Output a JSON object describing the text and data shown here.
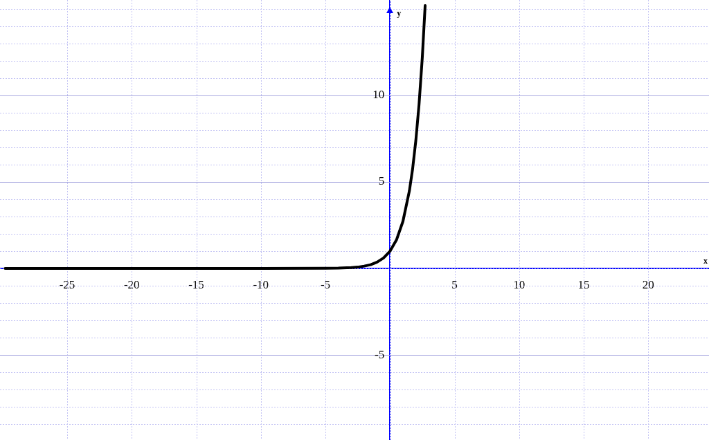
{
  "chart_data": {
    "type": "line",
    "xlabel": "x",
    "ylabel": "y",
    "x": [
      -29.8,
      -10,
      -5,
      -4,
      -3,
      -2.5,
      -2,
      -1.5,
      -1,
      -0.5,
      0,
      0.5,
      1,
      1.5,
      1.75,
      2,
      2.25,
      2.5,
      2.72
    ],
    "series": [
      {
        "color": "#000000",
        "values": [
          0,
          0,
          0.01,
          0.02,
          0.05,
          0.08,
          0.14,
          0.22,
          0.37,
          0.61,
          1,
          1.65,
          2.72,
          4.48,
          5.75,
          7.39,
          9.49,
          12.18,
          15.18
        ]
      }
    ],
    "xlim": [
      -30.2,
      24.7
    ],
    "ylim": [
      -9.9,
      15.5
    ],
    "xticks": [
      -25,
      -20,
      -15,
      -10,
      -5,
      {
        "value": 0,
        "label": null
      },
      5,
      10,
      15,
      20
    ],
    "yticks": [
      {
        "value": -9,
        "label": null
      },
      {
        "value": -8,
        "label": null
      },
      {
        "value": -7,
        "label": null
      },
      {
        "value": -6,
        "label": null
      },
      -5,
      {
        "value": -4,
        "label": null
      },
      {
        "value": -3,
        "label": null
      },
      {
        "value": -2,
        "label": null
      },
      {
        "value": -1,
        "label": null
      },
      {
        "value": 0,
        "label": null
      },
      {
        "value": 1,
        "label": null
      },
      {
        "value": 2,
        "label": null
      },
      {
        "value": 3,
        "label": null
      },
      {
        "value": 4,
        "label": null
      },
      5,
      {
        "value": 6,
        "label": null
      },
      {
        "value": 7,
        "label": null
      },
      {
        "value": 8,
        "label": null
      },
      {
        "value": 9,
        "label": null
      },
      10,
      {
        "value": 11,
        "label": null
      },
      {
        "value": 12,
        "label": null
      },
      {
        "value": 13,
        "label": null
      },
      {
        "value": 14,
        "label": null
      },
      {
        "value": 15,
        "label": null
      }
    ],
    "grid": true,
    "marker": "none",
    "line_style": "solid",
    "legend": false
  }
}
